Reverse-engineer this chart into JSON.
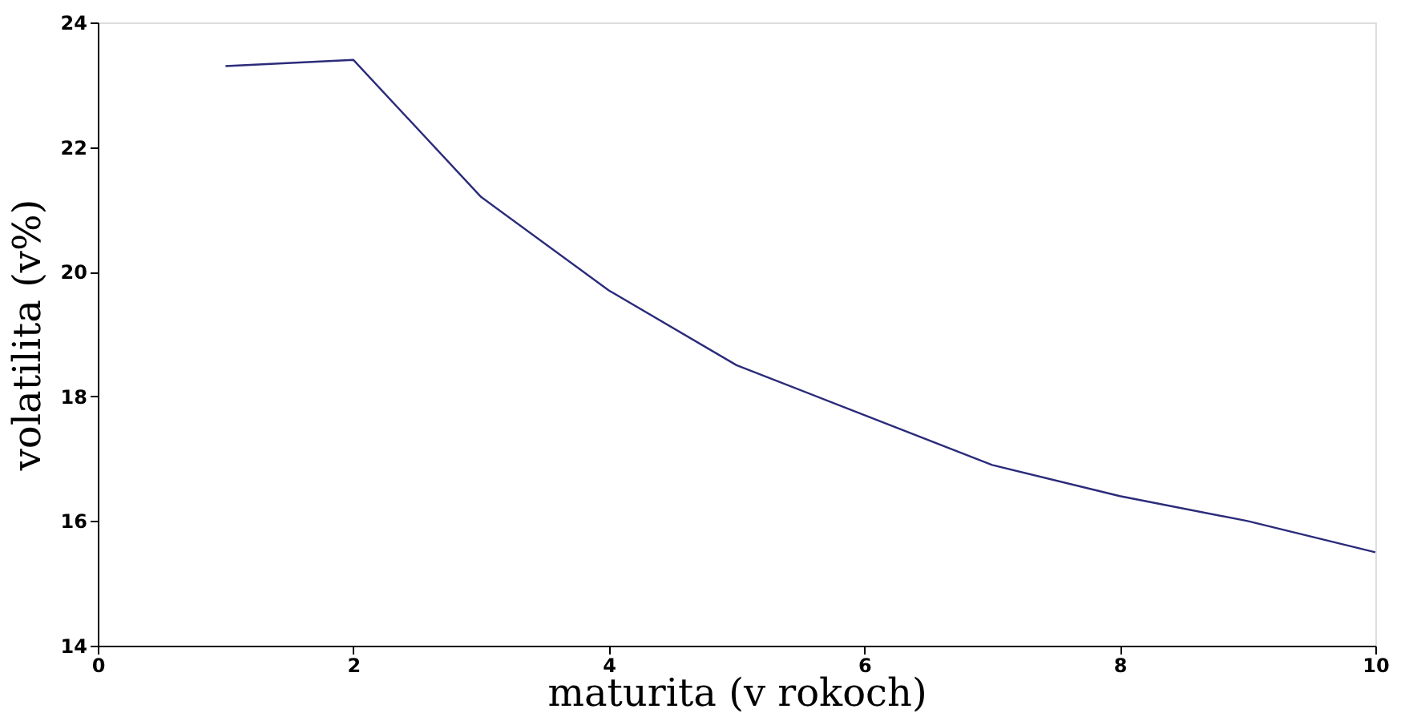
{
  "chart_data": {
    "type": "line",
    "xlabel": "maturita (v rokoch)",
    "ylabel": "volatilita (v%)",
    "x": [
      1,
      2,
      3,
      4,
      5,
      6,
      7,
      8,
      9,
      10
    ],
    "series": [
      {
        "color": "#2b2b7a",
        "values": [
          23.3,
          23.4,
          21.2,
          19.7,
          18.5,
          17.7,
          16.9,
          16.4,
          16.0,
          15.5
        ]
      }
    ],
    "xlim": [
      0,
      10
    ],
    "ylim": [
      14,
      24
    ],
    "xticks": [
      0,
      2,
      4,
      6,
      8,
      10
    ],
    "yticks": [
      14,
      16,
      18,
      20,
      22,
      24
    ],
    "grid": false,
    "marker": "none",
    "line_style": "solid"
  }
}
